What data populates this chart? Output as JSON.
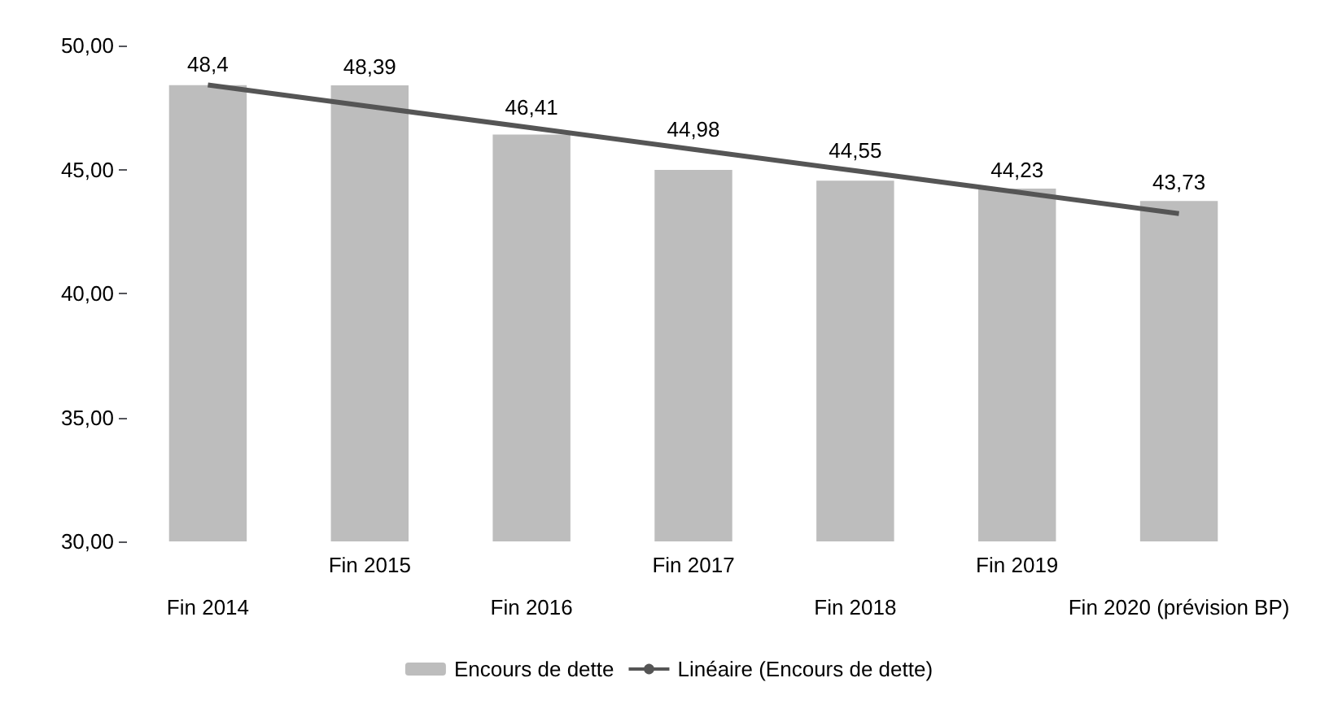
{
  "chart_data": {
    "type": "bar",
    "categories": [
      "Fin 2014",
      "Fin 2015",
      "Fin 2016",
      "Fin 2017",
      "Fin 2018",
      "Fin 2019",
      "Fin 2020 (prévision BP)"
    ],
    "series": [
      {
        "name": "Encours de dette",
        "color": "#bdbdbd",
        "values": [
          48.4,
          48.39,
          46.41,
          44.98,
          44.55,
          44.23,
          43.73
        ],
        "value_labels": [
          "48,4",
          "48,39",
          "46,41",
          "44,98",
          "44,55",
          "44,23",
          "43,73"
        ]
      },
      {
        "name": "Linéaire (Encours de dette)",
        "type": "line",
        "color": "#555555",
        "values": [
          48.41,
          47.54,
          46.68,
          45.81,
          44.95,
          44.09,
          43.22
        ]
      }
    ],
    "ylim": [
      30,
      50
    ],
    "yticks": [
      {
        "value": 30,
        "label": "30,00"
      },
      {
        "value": 35,
        "label": "35,00"
      },
      {
        "value": 40,
        "label": "40,00"
      },
      {
        "value": 45,
        "label": "45,00"
      },
      {
        "value": 50,
        "label": "50,00"
      }
    ],
    "grid": false,
    "legend": "bottom",
    "marker": "none"
  }
}
